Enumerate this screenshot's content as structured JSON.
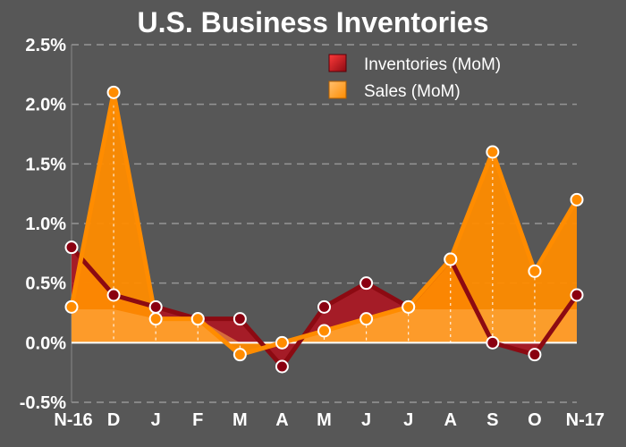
{
  "chart_data": {
    "type": "area",
    "title": "U.S. Business Inventories",
    "categories": [
      "N-16",
      "D",
      "J",
      "F",
      "M",
      "A",
      "M",
      "J",
      "J",
      "A",
      "S",
      "O",
      "N-17"
    ],
    "series": [
      {
        "name": "Inventories (MoM)",
        "values": [
          0.8,
          0.4,
          0.3,
          0.2,
          0.2,
          -0.2,
          0.3,
          0.5,
          0.3,
          0.7,
          0.0,
          -0.1,
          0.4
        ]
      },
      {
        "name": "Sales (MoM)",
        "values": [
          0.3,
          2.1,
          0.2,
          0.2,
          -0.1,
          0.0,
          0.1,
          0.2,
          0.3,
          0.7,
          1.6,
          0.6,
          1.2
        ]
      }
    ],
    "ylim": [
      -0.5,
      2.5
    ],
    "yticks": [
      "-0.5%",
      "0.0%",
      "0.5%",
      "1.0%",
      "1.5%",
      "2.0%",
      "2.5%"
    ],
    "grid": true,
    "legend_position": "top-right",
    "colors": {
      "background": "#575757",
      "inventories_fill": "#b3121e",
      "inventories_line": "#8c0a12",
      "sales_fill": "#ff8c00",
      "sales_light": "#ffad4d",
      "axis_text": "#ffffff"
    }
  }
}
